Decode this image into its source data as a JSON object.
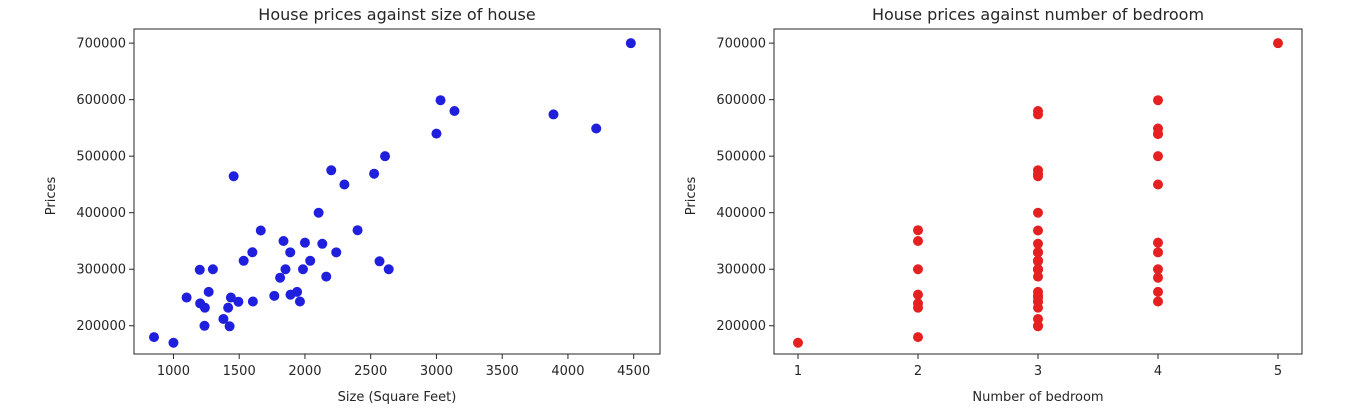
{
  "chart_data": [
    {
      "type": "scatter",
      "title": "House prices against size of house",
      "xlabel": "Size (Square Feet)",
      "ylabel": "Prices",
      "xlim": [
        700,
        4700
      ],
      "ylim": [
        150000,
        725000
      ],
      "xticks": [
        "1000",
        "1500",
        "2000",
        "2500",
        "3000",
        "3500",
        "4000",
        "4500"
      ],
      "yticks": [
        "200000",
        "300000",
        "400000",
        "500000",
        "600000",
        "700000"
      ],
      "marker_color": "#1f1fdd",
      "series": [
        {
          "x": [
            852,
            1000,
            1100,
            1200,
            1203,
            1236,
            1239,
            1268,
            1300,
            1380,
            1416,
            1427,
            1437,
            1458,
            1494,
            1534,
            1600,
            1604,
            1664,
            1767,
            1811,
            1837,
            1852,
            1888,
            1890,
            1940,
            1962,
            1985,
            2000,
            2040,
            2104,
            2132,
            2162,
            2200,
            2238,
            2300,
            2400,
            2526,
            2567,
            2609,
            2637,
            3000,
            3031,
            3137,
            3890,
            4215,
            4478
          ],
          "y": [
            179900,
            169900,
            249900,
            299000,
            239500,
            199900,
            232000,
            259900,
            299900,
            212000,
            232000,
            198999,
            249900,
            464500,
            242500,
            314900,
            329999,
            242900,
            368500,
            252900,
            285000,
            349900,
            299900,
            329900,
            255000,
            259900,
            242900,
            299900,
            347000,
            314900,
            399900,
            345000,
            287000,
            475000,
            329900,
            449900,
            369000,
            469000,
            314000,
            499998,
            299900,
            539900,
            599000,
            579900,
            573900,
            549000,
            699900
          ]
        }
      ]
    },
    {
      "type": "scatter",
      "title": "House prices against number of bedroom",
      "xlabel": "Number of bedroom",
      "ylabel": "Prices",
      "xlim": [
        0.8,
        5.2
      ],
      "ylim": [
        150000,
        725000
      ],
      "xticks": [
        "1",
        "2",
        "3",
        "4",
        "5"
      ],
      "yticks": [
        "200000",
        "300000",
        "400000",
        "500000",
        "600000",
        "700000"
      ],
      "marker_color": "#e62020",
      "series": [
        {
          "x": [
            1,
            2,
            2,
            2,
            2,
            2,
            2,
            2,
            3,
            3,
            3,
            3,
            3,
            3,
            3,
            3,
            3,
            3,
            3,
            3,
            3,
            3,
            3,
            3,
            3,
            3,
            3,
            3,
            3,
            3,
            3,
            3,
            3,
            3,
            4,
            4,
            4,
            4,
            4,
            4,
            4,
            4,
            4,
            4,
            4,
            4,
            5
          ],
          "y": [
            169900,
            179900,
            232000,
            239500,
            255000,
            299900,
            349900,
            369000,
            198999,
            199900,
            212000,
            232000,
            242500,
            242900,
            249900,
            252900,
            259900,
            287000,
            299000,
            299900,
            314000,
            314900,
            329900,
            329999,
            345000,
            368500,
            399900,
            464500,
            469000,
            475000,
            573900,
            579900,
            299900,
            314900,
            242900,
            259900,
            285000,
            299900,
            329900,
            347000,
            449900,
            499998,
            539900,
            549000,
            599000,
            539000,
            699900
          ]
        }
      ]
    }
  ]
}
